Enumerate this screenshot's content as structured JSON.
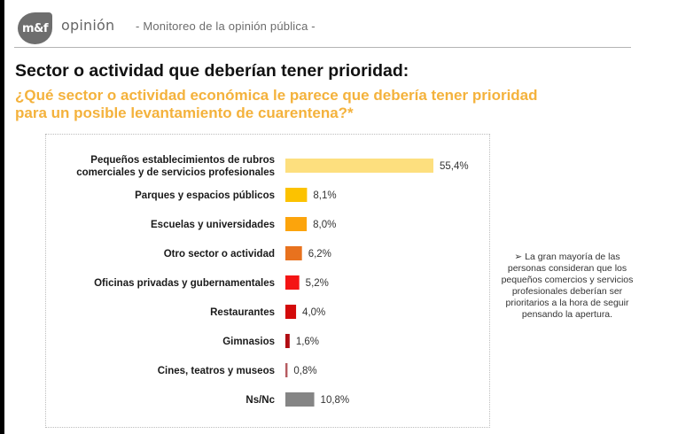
{
  "header": {
    "logo_text": "m&f",
    "brand_word": "opinión",
    "subtitle": "- Monitoreo de la opinión pública -"
  },
  "title": "Sector o actividad que deberían tener prioridad:",
  "question": "¿Qué sector o actividad económica le parece que debería tener prioridad para un posible levantamiento de cuarentena?*",
  "note": {
    "bullet_icon": "arrow-bullet-icon",
    "bullet": "➢",
    "text": "La gran mayoría de las personas consideran que los pequeños comercios y servicios profesionales deberían ser prioritarios a la hora de seguir pensando la apertura."
  },
  "colors": {
    "accent": "#f4b23c",
    "title": "#111111"
  },
  "chart_data": {
    "type": "bar",
    "orientation": "horizontal",
    "title": "",
    "xlabel": "",
    "ylabel": "",
    "unit": "%",
    "xlim": [
      0,
      55.4
    ],
    "grid": false,
    "legend": "none",
    "categories": [
      [
        "Pequeños establecimientos de rubros",
        "comerciales y de servicios profesionales"
      ],
      [
        "Parques y espacios públicos"
      ],
      [
        "Escuelas y universidades"
      ],
      [
        "Otro sector o actividad"
      ],
      [
        "Oficinas privadas y gubernamentales"
      ],
      [
        "Restaurantes"
      ],
      [
        "Gimnasios"
      ],
      [
        "Cines, teatros y museos"
      ],
      [
        "Ns/Nc"
      ]
    ],
    "values": [
      55.4,
      8.1,
      8.0,
      6.2,
      5.2,
      4.0,
      1.6,
      0.8,
      10.8
    ],
    "labels": [
      "55,4%",
      "8,1%",
      "8,0%",
      "6,2%",
      "5,2%",
      "4,0%",
      "1,6%",
      "0,8%",
      "10,8%"
    ],
    "colors": [
      "#fddf7e",
      "#fcc200",
      "#fca40c",
      "#e8721e",
      "#f41414",
      "#d30a0a",
      "#b10c12",
      "#b55a5f",
      "#858585"
    ]
  }
}
